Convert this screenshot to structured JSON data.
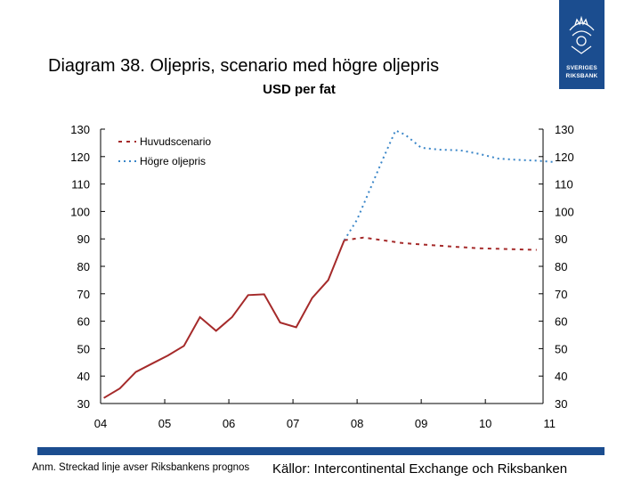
{
  "header": {
    "title": "Diagram 38. Oljepris, scenario med högre oljepris",
    "logo_line1": "SVERIGES",
    "logo_line2": "RIKSBANK"
  },
  "footer": {
    "note": "Anm. Streckad linje avser Riksbankens prognos",
    "sources": "Källor: Intercontinental Exchange och Riksbanken"
  },
  "colors": {
    "brand": "#1b4d8f",
    "main_series": "#a52a2a",
    "high_series": "#3a86c8"
  },
  "chart_data": {
    "type": "line",
    "subtitle": "USD per fat",
    "xlim": [
      2004,
      2010.9
    ],
    "ylim": [
      30,
      130
    ],
    "yticks": [
      30,
      40,
      50,
      60,
      70,
      80,
      90,
      100,
      110,
      120,
      130
    ],
    "xticks": [
      {
        "value": 2004,
        "label": "04"
      },
      {
        "value": 2005,
        "label": "05"
      },
      {
        "value": 2006,
        "label": "06"
      },
      {
        "value": 2007,
        "label": "07"
      },
      {
        "value": 2008,
        "label": "08"
      },
      {
        "value": 2009,
        "label": "09"
      },
      {
        "value": 2010,
        "label": "10"
      },
      {
        "value": 2011,
        "label": "11"
      }
    ],
    "grid": false,
    "legend_position": "top-left",
    "historical": {
      "x": [
        2004.05,
        2004.3,
        2004.55,
        2004.8,
        2005.05,
        2005.3,
        2005.55,
        2005.8,
        2006.05,
        2006.3,
        2006.55,
        2006.8,
        2007.05,
        2007.3,
        2007.55,
        2007.8
      ],
      "y": [
        32,
        35.5,
        41.5,
        44.5,
        47.5,
        51,
        61.5,
        56.5,
        61.5,
        69.5,
        69.8,
        59.5,
        57.8,
        68.5,
        75,
        89.5
      ]
    },
    "series": [
      {
        "name": "Huvudscenario",
        "style": "dashed",
        "x": [
          2007.8,
          2008.1,
          2008.4,
          2008.7,
          2009.0,
          2009.3,
          2009.6,
          2009.9,
          2010.2,
          2010.5,
          2010.8
        ],
        "y": [
          89.5,
          90.5,
          89.5,
          88.5,
          88,
          87.5,
          87,
          86.6,
          86.4,
          86.2,
          86
        ]
      },
      {
        "name": "Högre oljepris",
        "style": "dotted",
        "x": [
          2007.8,
          2008.0,
          2008.2,
          2008.4,
          2008.6,
          2008.75,
          2009.0,
          2009.3,
          2009.6,
          2009.9,
          2010.2,
          2010.5,
          2010.8,
          2011.1
        ],
        "y": [
          89.5,
          97,
          108,
          119,
          129.5,
          128,
          123.2,
          122.5,
          122.3,
          121,
          119.3,
          118.8,
          118.5,
          118
        ]
      }
    ]
  }
}
